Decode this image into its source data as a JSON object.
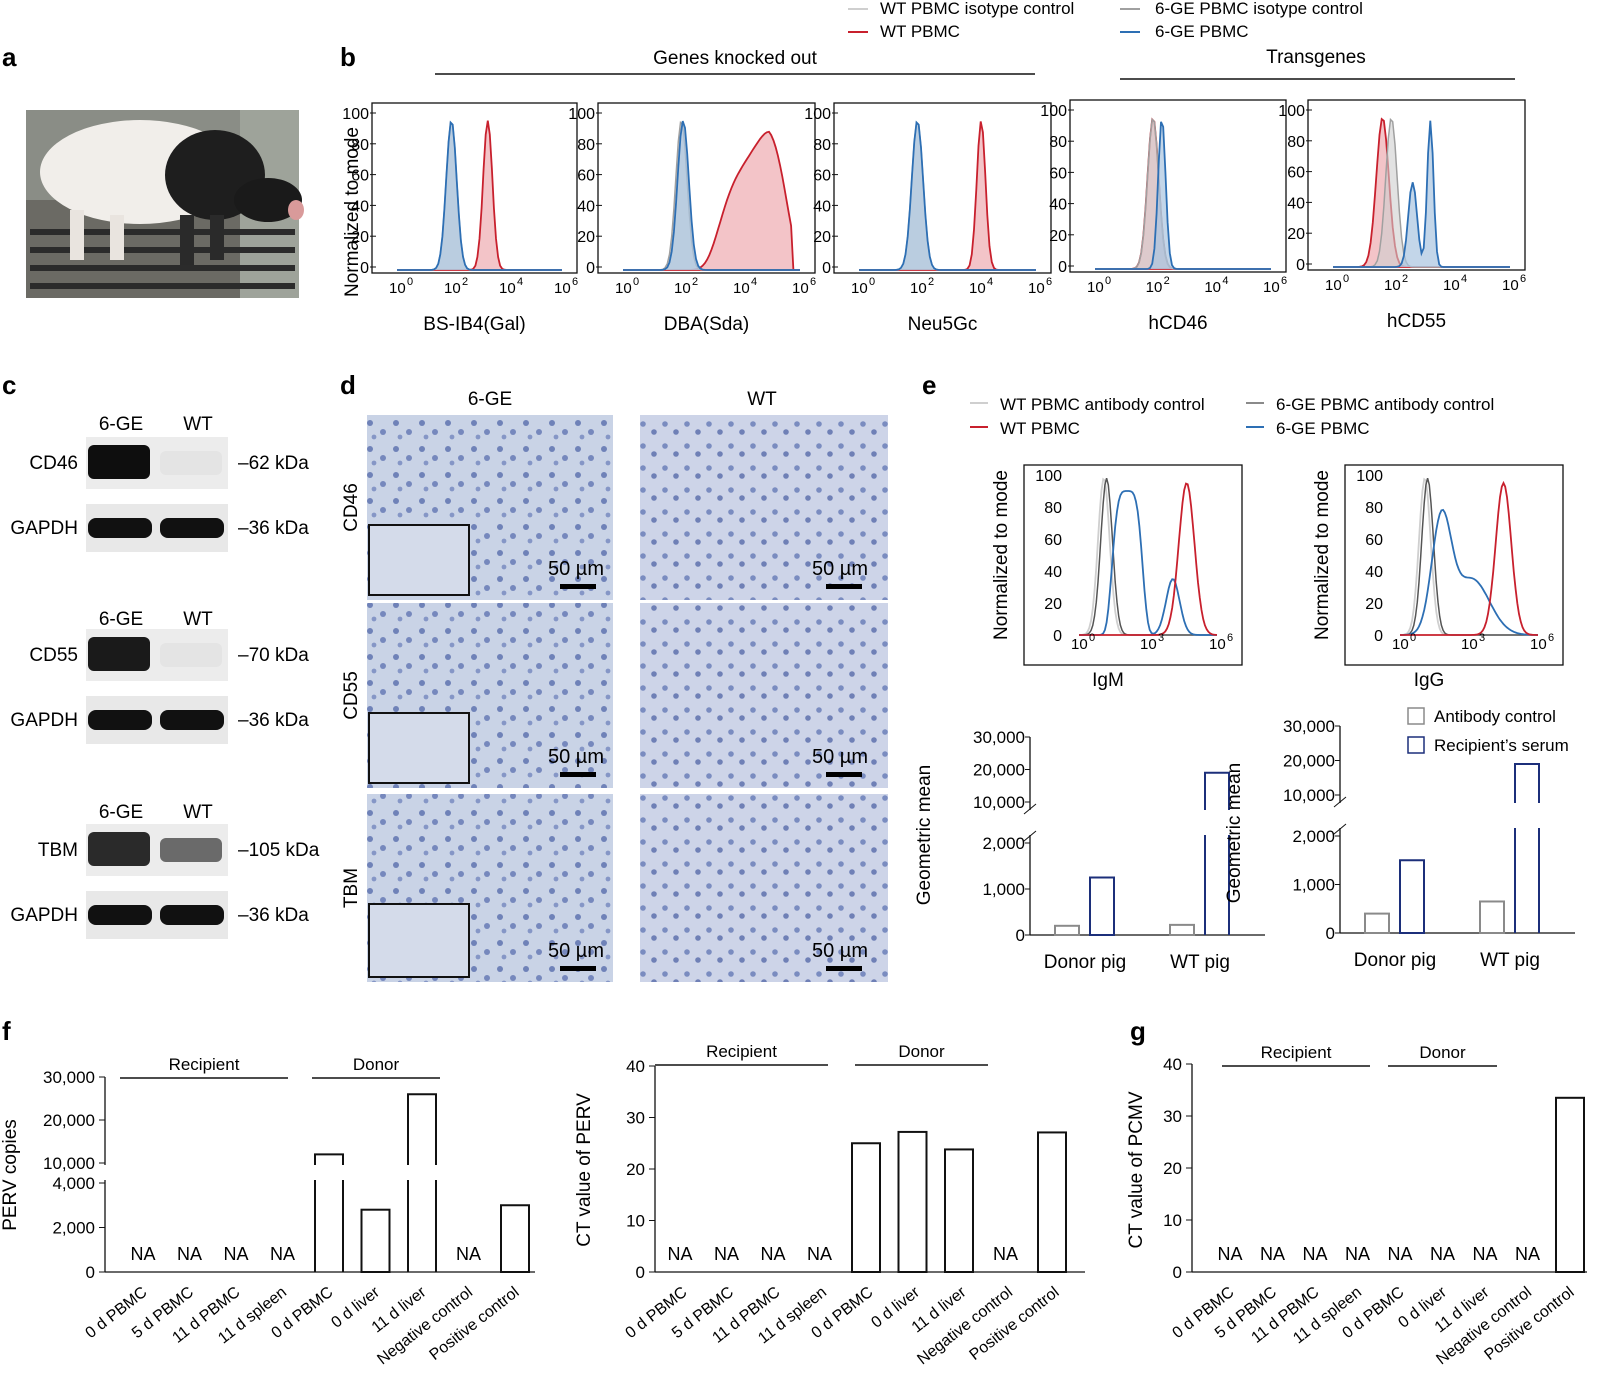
{
  "colors": {
    "wt_red": "#c8202d",
    "ge_blue": "#2d6fb4",
    "iso_gray": "#a0a0a0",
    "iso_light": "#cfcfcf",
    "dark_gray": "#555555",
    "navy": "#1c2f7a",
    "ab_gray": "#8a8a8a"
  },
  "panels": {
    "a": "a",
    "b": "b",
    "c": "c",
    "d": "d",
    "e": "e",
    "f": "f",
    "g": "g"
  },
  "b": {
    "legend": [
      "WT PBMC isotype control",
      "WT PBMC",
      "6-GE PBMC isotype control",
      "6-GE PBMC"
    ],
    "group1": "Genes knocked out",
    "group2": "Transgenes",
    "ylabel": "Normalized to mode",
    "yticks": [
      "100",
      "80",
      "60",
      "40",
      "20",
      "0"
    ],
    "xticks": [
      "10",
      "10",
      "10",
      "10"
    ],
    "xexp": [
      "0",
      "2",
      "4",
      "6"
    ],
    "xlabels": [
      "BS-IB4(Gal)",
      "DBA(Sda)",
      "Neu5Gc",
      "hCD46",
      "hCD55"
    ]
  },
  "c": {
    "col1": "6-GE",
    "col2": "WT",
    "blots": [
      {
        "name": "CD46",
        "size": "–62 kDa",
        "gapdh": "GAPDH",
        "gsize": "–36 kDa"
      },
      {
        "name": "CD55",
        "size": "–70 kDa",
        "gapdh": "GAPDH",
        "gsize": "–36 kDa"
      },
      {
        "name": "TBM",
        "size": "–105 kDa",
        "gapdh": "GAPDH",
        "gsize": "–36 kDa"
      }
    ]
  },
  "d": {
    "col1": "6-GE",
    "col2": "WT",
    "rows": [
      "CD46",
      "CD55",
      "TBM"
    ],
    "scale": "50 µm"
  },
  "e": {
    "legend": [
      "WT PBMC antibody control",
      "WT PBMC",
      "6-GE PBMC antibody control",
      "6-GE PBMC"
    ],
    "ylabel": "Normalized to mode",
    "yticks": [
      "100",
      "80",
      "60",
      "40",
      "20",
      "0"
    ],
    "xticks": [
      "10",
      "10",
      "10"
    ],
    "xexp": [
      "0",
      "3",
      "6"
    ],
    "xlabels": [
      "IgM",
      "IgG"
    ],
    "bar_ylabel": "Geometric mean",
    "bar_legend": [
      "Antibody control",
      "Recipient’s serum"
    ],
    "yticks_left": [
      "30,000",
      "20,000",
      "10,000",
      "2,000",
      "1,000",
      "0"
    ],
    "yticks_right": [
      "30,000",
      "20,000",
      "10,000",
      "2,000",
      "1,000",
      "0"
    ]
  },
  "f": {
    "recipient": "Recipient",
    "donor": "Donor",
    "ylabel1": "PERV copies",
    "ylabel2": "CT value of PERV",
    "yticks1": [
      "30,000",
      "20,000",
      "10,000",
      "4,000",
      "2,000",
      "0"
    ],
    "yticks2": [
      "40",
      "30",
      "20",
      "10",
      "0"
    ],
    "na": "NA",
    "categories": [
      "0 d PBMC",
      "5 d PBMC",
      "11 d PBMC",
      "11 d spleen",
      "0 d PBMC",
      "0 d liver",
      "11 d liver",
      "Negative control",
      "Positive control"
    ]
  },
  "g": {
    "recipient": "Recipient",
    "donor": "Donor",
    "ylabel": "CT value of PCMV",
    "yticks": [
      "40",
      "30",
      "20",
      "10",
      "0"
    ],
    "na": "NA",
    "categories": [
      "0 d PBMC",
      "5 d PBMC",
      "11 d PBMC",
      "11 d spleen",
      "0 d PBMC",
      "0 d liver",
      "11 d liver",
      "Negative control",
      "Positive control"
    ]
  },
  "chart_data": [
    {
      "type": "bar",
      "title": "",
      "ylabel": "Geometric mean",
      "xlabel": "IgM",
      "categories": [
        "Donor pig",
        "WT pig"
      ],
      "series": [
        {
          "name": "Antibody control",
          "values": [
            200,
            220
          ]
        },
        {
          "name": "Recipient’s serum",
          "values": [
            1250,
            19000
          ]
        }
      ]
    },
    {
      "type": "bar",
      "title": "",
      "ylabel": "Geometric mean",
      "xlabel": "IgG",
      "categories": [
        "Donor pig",
        "WT pig"
      ],
      "series": [
        {
          "name": "Antibody control",
          "values": [
            400,
            650
          ]
        },
        {
          "name": "Recipient’s serum",
          "values": [
            1500,
            19000
          ]
        }
      ]
    },
    {
      "type": "bar",
      "ylabel": "PERV copies",
      "categories": [
        "0 d PBMC",
        "5 d PBMC",
        "11 d PBMC",
        "11 d spleen",
        "0 d PBMC",
        "0 d liver",
        "11 d liver",
        "Negative control",
        "Positive control"
      ],
      "values": [
        null,
        null,
        null,
        null,
        12000,
        2800,
        26000,
        null,
        3000
      ],
      "labels": [
        "NA",
        "NA",
        "NA",
        "NA",
        "",
        "",
        "",
        "NA",
        ""
      ]
    },
    {
      "type": "bar",
      "ylabel": "CT value of PERV",
      "ylim": [
        0,
        40
      ],
      "categories": [
        "0 d PBMC",
        "5 d PBMC",
        "11 d PBMC",
        "11 d spleen",
        "0 d PBMC",
        "0 d liver",
        "11 d liver",
        "Negative control",
        "Positive control"
      ],
      "values": [
        null,
        null,
        null,
        null,
        25,
        27.2,
        23.8,
        null,
        27.1
      ],
      "labels": [
        "NA",
        "NA",
        "NA",
        "NA",
        "",
        "",
        "",
        "NA",
        ""
      ]
    },
    {
      "type": "bar",
      "ylabel": "CT value of PCMV",
      "ylim": [
        0,
        40
      ],
      "categories": [
        "0 d PBMC",
        "5 d PBMC",
        "11 d PBMC",
        "11 d spleen",
        "0 d PBMC",
        "0 d liver",
        "11 d liver",
        "Negative control",
        "Positive control"
      ],
      "values": [
        null,
        null,
        null,
        null,
        null,
        null,
        null,
        null,
        33.5
      ],
      "labels": [
        "NA",
        "NA",
        "NA",
        "NA",
        "NA",
        "NA",
        "NA",
        "NA",
        ""
      ]
    }
  ]
}
